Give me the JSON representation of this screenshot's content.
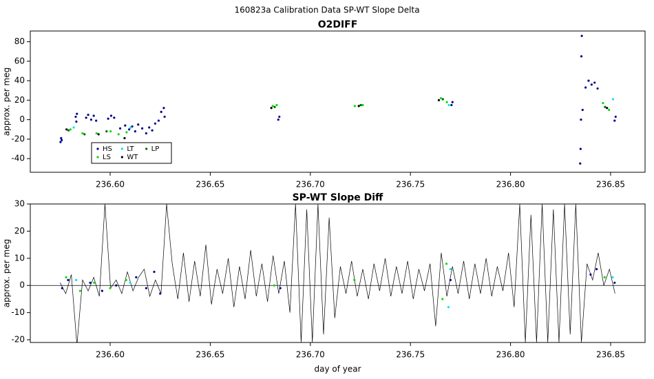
{
  "title": "160823a   Calibration Data SP-WT Slope Delta",
  "chart_data": [
    {
      "type": "scatter",
      "title": "O2DIFF",
      "y_label": "approx. per meg",
      "xlim": [
        236.5601,
        236.8672
      ],
      "ylim": [
        -54,
        91
      ],
      "xticks": [
        {
          "value": 236.6,
          "label": "236.60"
        },
        236.65,
        {
          "value": 236.7,
          "label": "236.70"
        },
        236.75,
        {
          "value": 236.8,
          "label": "236.80"
        },
        236.85
      ],
      "yticks": [
        -40,
        -20,
        0,
        20,
        40,
        60,
        80
      ],
      "legend": "bottomleft",
      "series": [
        {
          "name": "HS",
          "color": "#00008b",
          "x": [
            236.5752,
            236.5755,
            236.5758,
            236.5828,
            236.5831,
            236.5834,
            236.588,
            236.589,
            236.5905,
            236.5918,
            236.593,
            236.599,
            236.6005,
            236.602,
            236.605,
            236.6075,
            236.6095,
            236.611,
            236.6125,
            236.614,
            236.616,
            236.618,
            236.6195,
            236.621,
            236.6225,
            236.6242,
            236.6255,
            236.6268,
            236.6272,
            236.684,
            236.6845,
            236.7705,
            236.771,
            236.8348,
            236.835,
            236.8352,
            236.8354,
            236.8356,
            236.836,
            236.8375,
            236.839,
            236.8405,
            236.842,
            236.8435,
            236.852,
            236.8525
          ],
          "values": [
            -23,
            -19,
            -21,
            3,
            -2,
            6,
            2,
            5,
            0,
            4,
            -1,
            1,
            4,
            2,
            -9,
            -6,
            -10,
            -7,
            -12,
            -5,
            -9,
            -14,
            -8,
            -11,
            -4,
            -1,
            8,
            12,
            3,
            0,
            3,
            15,
            18,
            -45,
            -30,
            0,
            65,
            86,
            10,
            33,
            40,
            36,
            38,
            32,
            -1,
            3
          ]
        },
        {
          "name": "LS",
          "color": "#00dd00",
          "x": [
            236.5802,
            236.5862,
            236.5932,
            236.6002,
            236.6042,
            236.6082,
            236.6812,
            236.6832,
            236.7222,
            236.7262,
            236.7652,
            236.7682,
            236.8462,
            236.8492
          ],
          "values": [
            -10,
            -14,
            -14,
            -12,
            -15,
            -13,
            14,
            15,
            14,
            15,
            22,
            18,
            17,
            10
          ]
        },
        {
          "name": "LT",
          "color": "#00e5ee",
          "x": [
            236.5818,
            236.6102,
            236.7692,
            236.8512
          ],
          "values": [
            -8,
            -8,
            15,
            21
          ]
        },
        {
          "name": "WT",
          "color": "#000000",
          "x": [
            236.5782,
            236.5942,
            236.6072,
            236.6805,
            236.7242,
            236.7642,
            236.8482
          ],
          "values": [
            -10,
            -15,
            -19,
            12,
            14,
            20,
            12
          ]
        },
        {
          "name": "LP",
          "color": "#006400",
          "x": [
            236.5792,
            236.5872,
            236.5982,
            236.6822,
            236.7252,
            236.7662,
            236.8472
          ],
          "values": [
            -11,
            -15,
            -12,
            13,
            15,
            21,
            13
          ]
        }
      ]
    },
    {
      "type": "line",
      "title": "SP-WT Slope Diff",
      "y_label": "approx. per meg",
      "x_label": "day of year",
      "xlim": [
        236.5601,
        236.8672
      ],
      "ylim": [
        -21,
        30
      ],
      "xticks": [
        {
          "value": 236.6,
          "label": "236.60"
        },
        236.65,
        {
          "value": 236.7,
          "label": "236.70"
        },
        236.75,
        {
          "value": 236.8,
          "label": "236.80"
        },
        236.85
      ],
      "yticks": [
        -20,
        -10,
        0,
        10,
        20,
        30
      ],
      "zero_line": true,
      "series": [
        {
          "mode": "line",
          "color": "#000000",
          "x": [
            236.575,
            236.5778,
            236.5806,
            236.5834,
            236.5862,
            236.589,
            236.5918,
            236.5946,
            236.5974,
            236.6002,
            236.603,
            236.6058,
            236.6086,
            236.6114,
            236.6142,
            236.617,
            236.6198,
            236.6226,
            236.6254,
            236.6282,
            236.631,
            236.6338,
            236.6366,
            236.6394,
            236.6422,
            236.645,
            236.6478,
            236.6506,
            236.6534,
            236.6562,
            236.659,
            236.6618,
            236.6646,
            236.6674,
            236.6702,
            236.673,
            236.6758,
            236.6786,
            236.6814,
            236.6842,
            236.687,
            236.6898,
            236.6926,
            236.6954,
            236.6982,
            236.701,
            236.7038,
            236.7066,
            236.7094,
            236.7122,
            236.715,
            236.7178,
            236.7206,
            236.7234,
            236.7262,
            236.729,
            236.7318,
            236.7346,
            236.7374,
            236.7402,
            236.743,
            236.7458,
            236.7486,
            236.7514,
            236.7542,
            236.757,
            236.7598,
            236.7626,
            236.7654,
            236.7682,
            236.771,
            236.7738,
            236.7766,
            236.7794,
            236.7822,
            236.785,
            236.7878,
            236.7906,
            236.7934,
            236.7962,
            236.799,
            236.8018,
            236.8046,
            236.8074,
            236.8102,
            236.813,
            236.8158,
            236.8186,
            236.8214,
            236.8242,
            236.827,
            236.8298,
            236.8326,
            236.8354,
            236.8382,
            236.841,
            236.8438,
            236.8466,
            236.8494,
            236.8522
          ],
          "values": [
            1,
            -3,
            4,
            -22,
            2,
            -2,
            3,
            -4,
            30,
            -1,
            2,
            -3,
            5,
            -2,
            3,
            6,
            -4,
            2,
            -3,
            30,
            8,
            -5,
            12,
            -6,
            9,
            -4,
            15,
            -7,
            6,
            -3,
            10,
            -8,
            7,
            -5,
            13,
            -4,
            8,
            -6,
            11,
            -3,
            9,
            -10,
            30,
            -21,
            28,
            -21,
            30,
            -18,
            25,
            -12,
            7,
            -3,
            9,
            -4,
            6,
            -5,
            8,
            -2,
            10,
            -4,
            7,
            -3,
            9,
            -5,
            6,
            -2,
            8,
            -15,
            12,
            -4,
            7,
            -3,
            9,
            -5,
            8,
            -3,
            10,
            -4,
            7,
            -2,
            12,
            -8,
            30,
            -21,
            26,
            -21,
            30,
            -21,
            28,
            -21,
            30,
            -18,
            30,
            -21,
            8,
            2,
            12,
            0,
            6,
            -3
          ]
        },
        {
          "mode": "points",
          "color": "#00008b",
          "x": [
            236.576,
            236.579,
            236.59,
            236.596,
            236.603,
            236.613,
            236.618,
            236.622,
            236.625,
            236.685,
            236.77,
            236.84,
            236.843,
            236.852
          ],
          "values": [
            -1,
            2,
            1,
            -2,
            0,
            3,
            -1,
            5,
            -3,
            -1,
            2,
            4,
            6,
            1
          ]
        },
        {
          "mode": "points",
          "color": "#00dd00",
          "x": [
            236.578,
            236.585,
            236.592,
            236.6,
            236.608,
            236.682,
            236.722,
            236.766,
            236.768,
            236.847
          ],
          "values": [
            3,
            -2,
            1,
            -1,
            2,
            0,
            2,
            -5,
            8,
            3
          ]
        },
        {
          "mode": "points",
          "color": "#00e5ee",
          "x": [
            236.583,
            236.61,
            236.769,
            236.77,
            236.851
          ],
          "values": [
            2,
            1,
            -8,
            6,
            3
          ]
        }
      ]
    }
  ]
}
